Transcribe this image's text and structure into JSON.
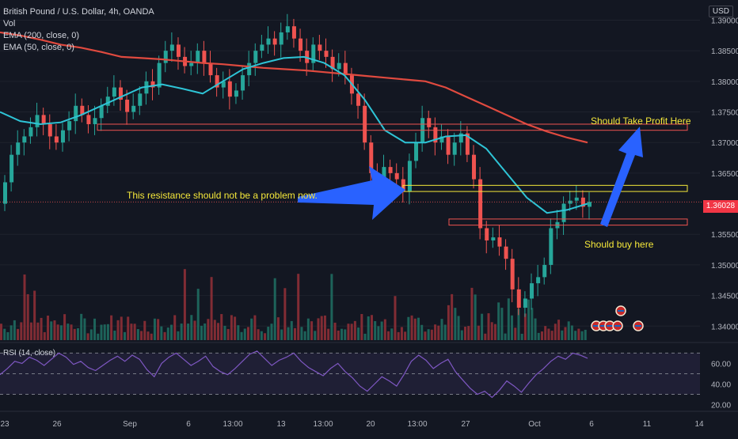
{
  "header": {
    "title": "British Pound / U.S. Dollar, 4h, OANDA",
    "indicators": [
      "Vol",
      "EMA (200, close, 0)",
      "EMA (50, close, 0)"
    ],
    "currency": "USD"
  },
  "price_tag": "1.36028",
  "rsi_label": "RSI (14, close)",
  "annotations": {
    "resistance": "This resistance should not be a problem now.",
    "take_profit": "Should Take Profit Here",
    "buy": "Should buy here"
  },
  "colors": {
    "background": "#131722",
    "up": "#26a69a",
    "down": "#ef5350",
    "ema200": "#e04a3f",
    "ema50": "#2ec4d6",
    "annotation_text": "#f5e83a",
    "arrow": "#2962ff",
    "rsi": "#7e57c2"
  },
  "chart_data": [
    {
      "type": "candlestick",
      "title": "British Pound / U.S. Dollar, 4h, OANDA",
      "x_ticks": [
        "23",
        "26",
        "Sep",
        "6",
        "13:00",
        "13",
        "13:00",
        "20",
        "13:00",
        "27",
        "Oct",
        "6",
        "11",
        "14"
      ],
      "y_ticks": [
        "1.39000",
        "1.38500",
        "1.38000",
        "1.37500",
        "1.37000",
        "1.36500",
        "1.36028",
        "1.35500",
        "1.35000",
        "1.34500",
        "1.34000"
      ],
      "ylim": [
        1.339,
        1.392
      ],
      "last_price": 1.36028,
      "closes": [
        1.3635,
        1.368,
        1.37,
        1.371,
        1.3725,
        1.3745,
        1.373,
        1.371,
        1.37,
        1.372,
        1.3735,
        1.376,
        1.3745,
        1.373,
        1.374,
        1.376,
        1.3775,
        1.379,
        1.377,
        1.375,
        1.376,
        1.378,
        1.38,
        1.379,
        1.383,
        1.385,
        1.386,
        1.384,
        1.3825,
        1.383,
        1.385,
        1.383,
        1.381,
        1.379,
        1.38,
        1.3775,
        1.3785,
        1.381,
        1.383,
        1.385,
        1.386,
        1.387,
        1.386,
        1.388,
        1.389,
        1.387,
        1.385,
        1.383,
        1.386,
        1.385,
        1.384,
        1.382,
        1.383,
        1.381,
        1.378,
        1.376,
        1.37,
        1.365,
        1.364,
        1.366,
        1.365,
        1.364,
        1.362,
        1.367,
        1.37,
        1.374,
        1.3725,
        1.37,
        1.371,
        1.368,
        1.37,
        1.3715,
        1.368,
        1.364,
        1.356,
        1.354,
        1.3545,
        1.353,
        1.351,
        1.346,
        1.343,
        1.3445,
        1.347,
        1.348,
        1.35,
        1.356,
        1.357,
        1.36,
        1.3605,
        1.361,
        1.3595,
        1.3603
      ],
      "ema200": [
        1.388,
        1.3875,
        1.3868,
        1.386,
        1.3855,
        1.3848,
        1.384,
        1.3838,
        1.3836,
        1.3833,
        1.383,
        1.3828,
        1.3825,
        1.3822,
        1.382,
        1.3818,
        1.3815,
        1.3812,
        1.3809,
        1.3806,
        1.3803,
        1.38,
        1.379,
        1.3775,
        1.376,
        1.3745,
        1.373,
        1.3718,
        1.3708,
        1.37
      ],
      "ema50": [
        1.375,
        1.3735,
        1.373,
        1.3733,
        1.3745,
        1.376,
        1.3775,
        1.379,
        1.3795,
        1.3788,
        1.378,
        1.38,
        1.382,
        1.383,
        1.3838,
        1.384,
        1.383,
        1.381,
        1.377,
        1.372,
        1.37,
        1.37,
        1.371,
        1.3712,
        1.369,
        1.365,
        1.361,
        1.3585,
        1.359,
        1.36
      ],
      "levels": {
        "take_profit_zone": [
          1.372,
          1.373
        ],
        "resistance_zone": [
          1.362,
          1.363
        ],
        "buy_zone": [
          1.3565,
          1.3575
        ],
        "long_line": [
          1.372,
          1.373
        ]
      }
    },
    {
      "type": "line",
      "title": "RSI (14, close)",
      "y_ticks": [
        "60.00",
        "40.00",
        "20.00"
      ],
      "ylim": [
        15,
        78
      ],
      "bands": [
        70,
        50,
        30
      ],
      "values": [
        49,
        55,
        62,
        60,
        66,
        63,
        58,
        64,
        70,
        66,
        59,
        62,
        56,
        53,
        58,
        63,
        67,
        62,
        68,
        64,
        54,
        47,
        60,
        66,
        70,
        64,
        58,
        62,
        67,
        57,
        52,
        49,
        55,
        62,
        69,
        72,
        65,
        58,
        63,
        66,
        70,
        62,
        56,
        52,
        48,
        55,
        60,
        52,
        46,
        38,
        33,
        40,
        47,
        43,
        38,
        49,
        62,
        68,
        63,
        55,
        60,
        64,
        52,
        44,
        36,
        30,
        33,
        27,
        34,
        43,
        38,
        32,
        41,
        49,
        55,
        62,
        67,
        64,
        70,
        68,
        65
      ]
    }
  ]
}
